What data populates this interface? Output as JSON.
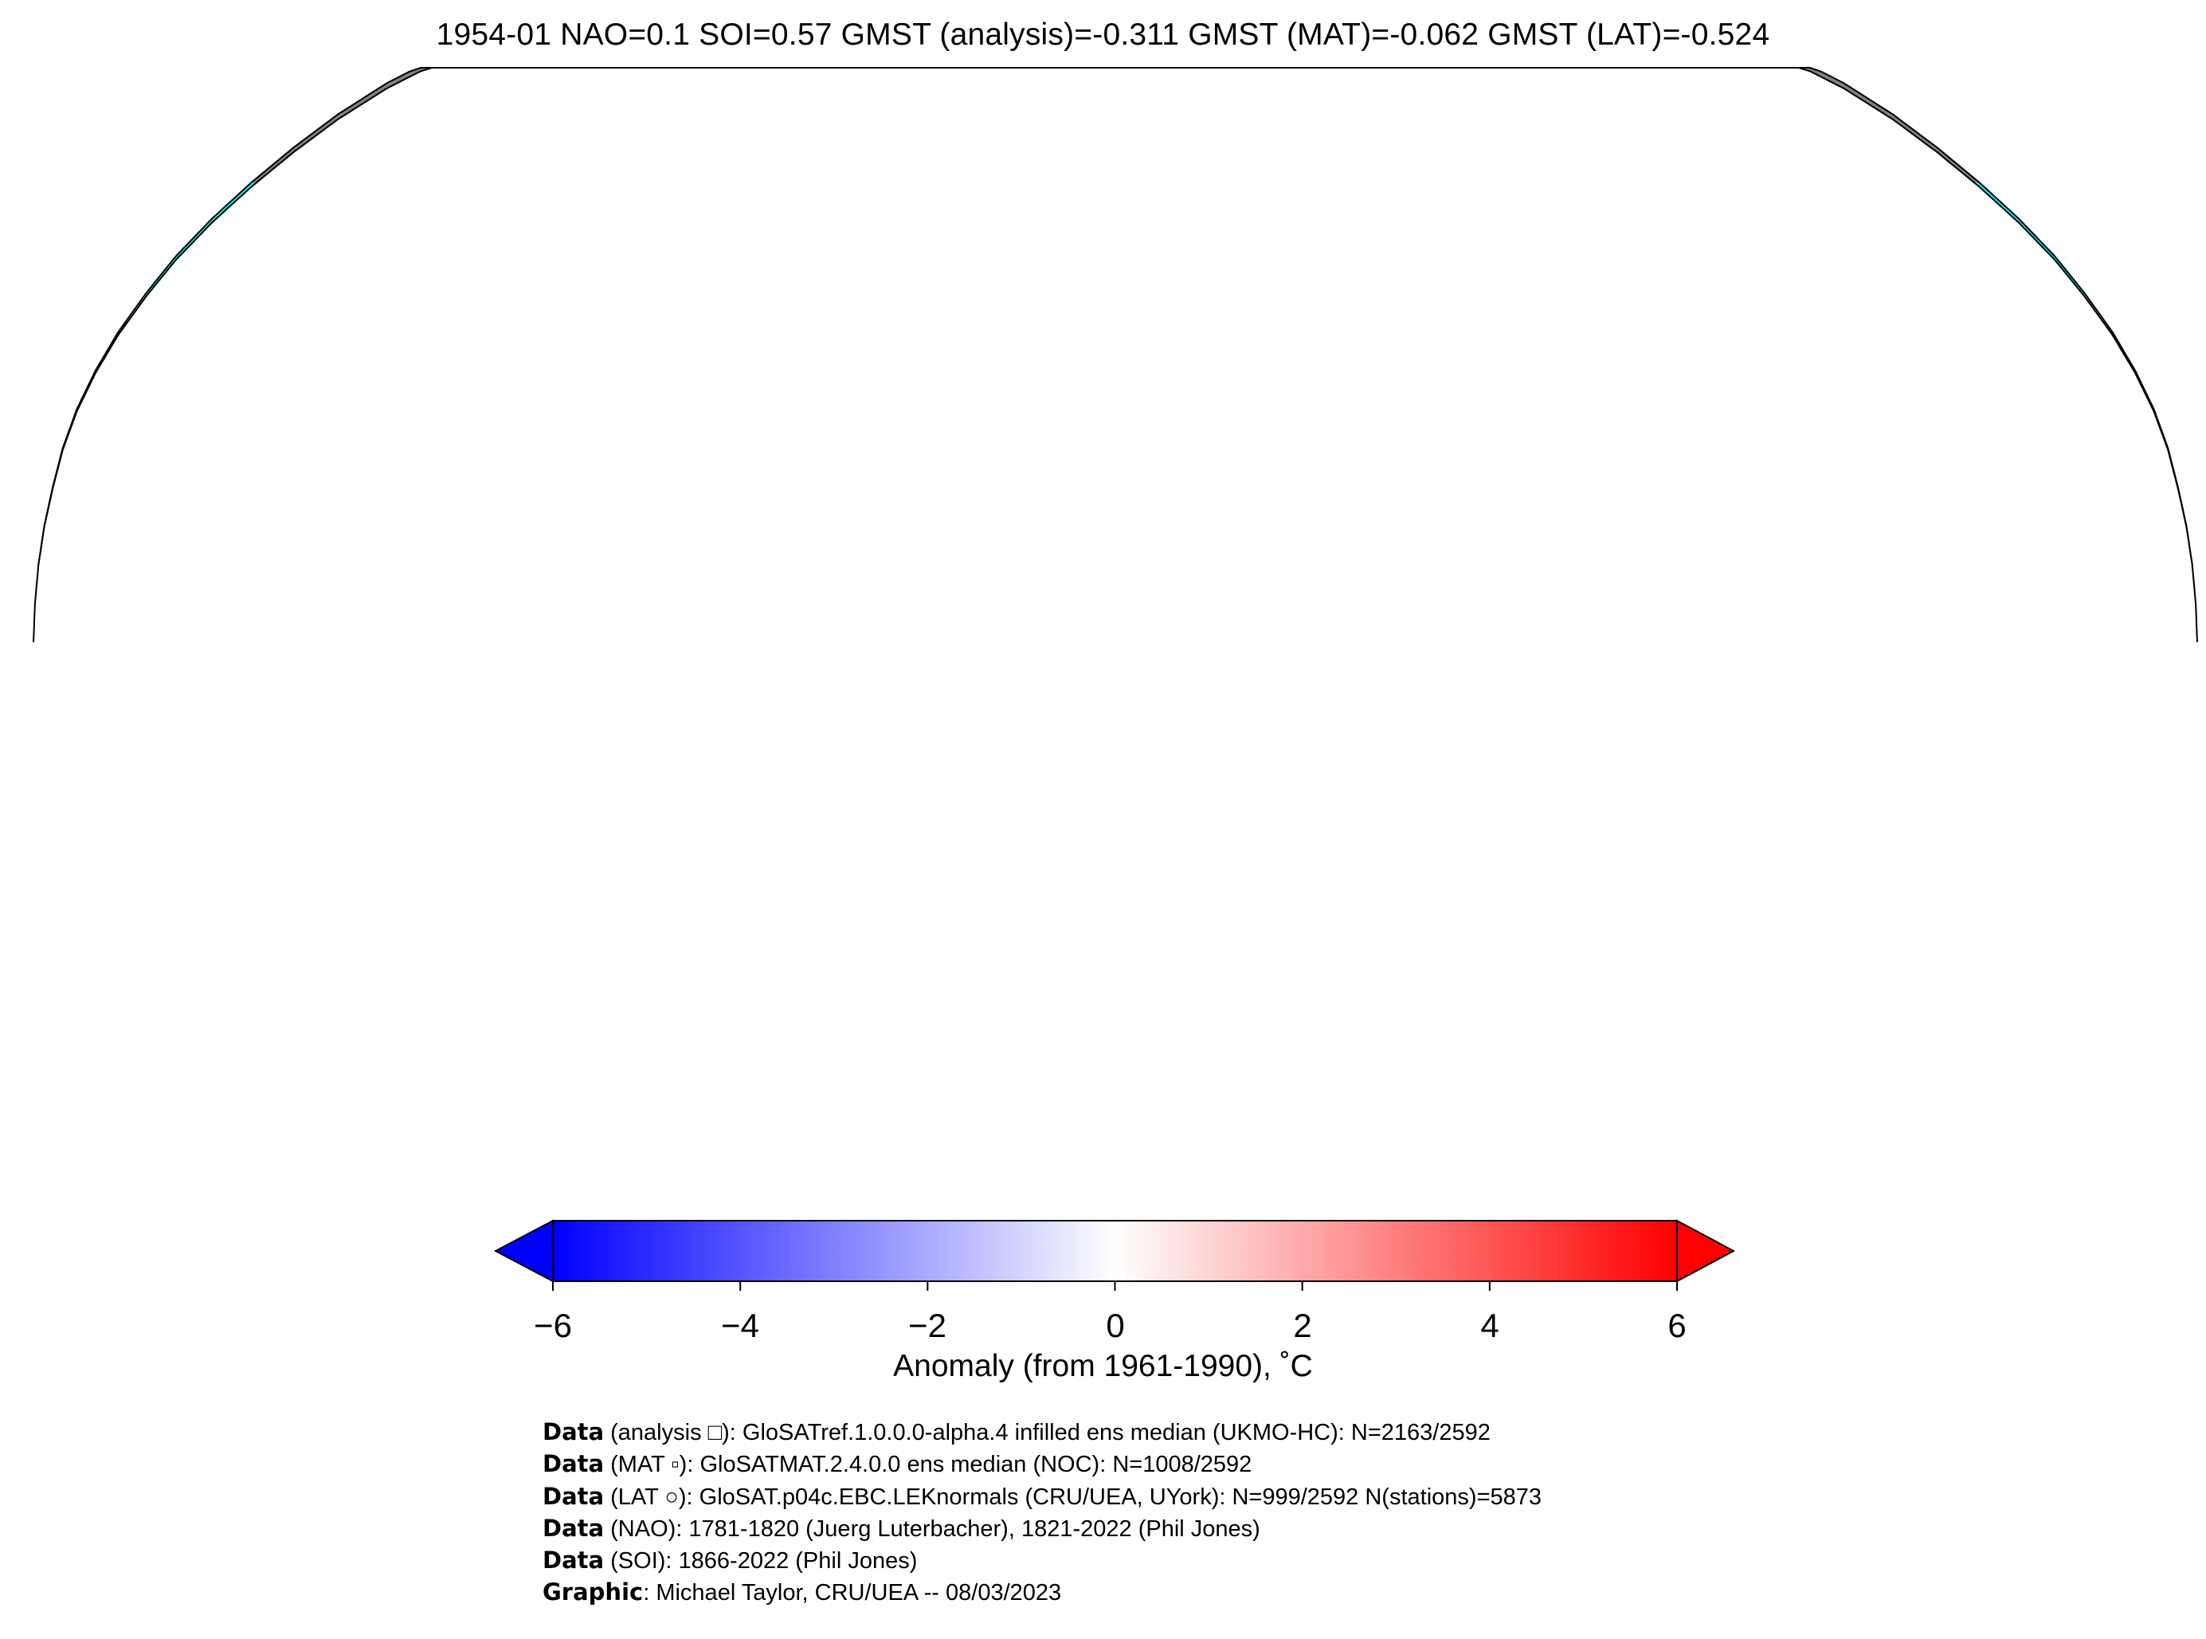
{
  "title": "1954-01 NAO=0.1 SOI=0.57 GMST (analysis)=-0.311 GMST (MAT)=-0.062 GMST (LAT)=-0.524",
  "colorbar": {
    "colors": [
      "#0000ff",
      "#ffffff",
      "#ff0000"
    ],
    "min": -6,
    "max": 6,
    "extend": "both",
    "ticks": [
      {
        "value": -6,
        "label": "−6"
      },
      {
        "value": -4,
        "label": "−4"
      },
      {
        "value": -2,
        "label": "−2"
      },
      {
        "value": 0,
        "label": "0"
      },
      {
        "value": 2,
        "label": "2"
      },
      {
        "value": 4,
        "label": "4"
      },
      {
        "value": 6,
        "label": "6"
      }
    ],
    "label": "Anomaly (from 1961-1990), ˚C"
  },
  "map": {
    "projection": "Robinson",
    "grid_resolution_deg": 5,
    "sea_ice_color": "#00ffff",
    "antarctica_color": "#808080",
    "gridline_color": "#c080c0"
  },
  "credits": [
    {
      "bold": "Data",
      "text": " (analysis □): GloSATref.1.0.0.0-alpha.4 infilled ens median (UKMO-HC): N=2163/2592"
    },
    {
      "bold": "Data",
      "text": " (MAT ▫): GloSATMAT.2.4.0.0 ens median (NOC): N=1008/2592"
    },
    {
      "bold": "Data",
      "text": " (LAT ○): GloSAT.p04c.EBC.LEKnormals (CRU/UEA, UYork): N=999/2592 N(stations)=5873"
    },
    {
      "bold": "Data",
      "text": " (NAO): 1781-1820 (Juerg Luterbacher), 1821-2022 (Phil Jones)"
    },
    {
      "bold": "Data",
      "text": " (SOI): 1866-2022 (Phil Jones)"
    },
    {
      "bold": "Graphic",
      "text": ": Michael Taylor, CRU/UEA -- 08/03/2023"
    }
  ]
}
